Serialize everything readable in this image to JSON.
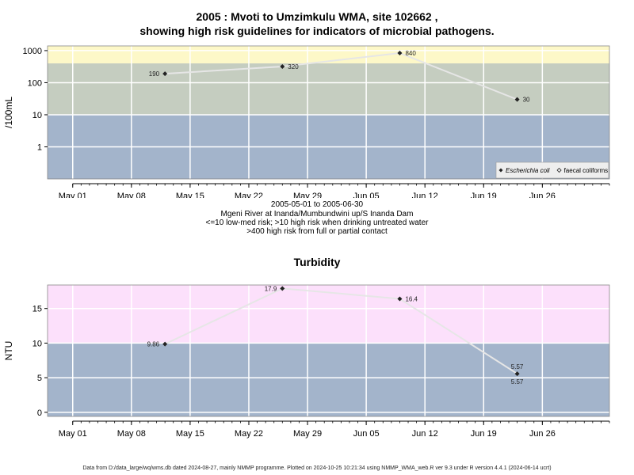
{
  "title_lines": [
    "2005 : Mvoti to Umzimkulu WMA, site 102662 ,",
    "showing high risk guidelines for indicators of microbial pathogens."
  ],
  "caption_lines": [
    "2005-05-01 to 2005-06-30",
    "Mgeni River at Inanda/Mumbundwini up/S Inanda Dam",
    "<=10 low-med risk; >10 high risk when drinking untreated water",
    ">400 high risk from full or partial contact"
  ],
  "footer": "Data from D:/data_large/wq/wms.db dated 2024-08-27, mainly NMMP programme. Plotted on 2024-10-25 10:21:34 using NMMP_WMA_web.R ver 9.3 under R version 4.4.1 (2024-06-14 ucrt)",
  "colors": {
    "low_band": "#a3b4cb",
    "mid_band": "#c5cdc0",
    "top_band_microbial": "#fdf8c8",
    "high_band_turbidity": "#fce0fb",
    "line": "#e6e6e6",
    "marker": "#222222",
    "grid": "#ffffff"
  },
  "chart_data": [
    {
      "type": "line",
      "title": "",
      "ylabel": "/100mL",
      "y_scale": "log",
      "ylim": [
        0.1,
        1400
      ],
      "x_ticks": [
        "May 01",
        "May 08",
        "May 15",
        "May 22",
        "May 29",
        "Jun 05",
        "Jun 12",
        "Jun 19",
        "Jun 26"
      ],
      "x_tick_dates": [
        "2005-05-01",
        "2005-05-08",
        "2005-05-15",
        "2005-05-22",
        "2005-05-29",
        "2005-06-05",
        "2005-06-12",
        "2005-06-19",
        "2005-06-26"
      ],
      "xlim": [
        "2005-04-28",
        "2005-07-04"
      ],
      "y_ticks": [
        1,
        10,
        100,
        1000
      ],
      "y_tick_labels": [
        "1",
        "10",
        "100",
        "1000"
      ],
      "bands": [
        {
          "from": 0.1,
          "to": 10,
          "color_key": "low_band"
        },
        {
          "from": 10,
          "to": 400,
          "color_key": "mid_band"
        },
        {
          "from": 400,
          "to": 1400,
          "color_key": "top_band_microbial"
        }
      ],
      "legend": {
        "position": "bottom-right",
        "entries": [
          {
            "label": "Escherichia coli",
            "marker": "filled-diamond",
            "italic": true
          },
          {
            "label": "faecal coliforms",
            "marker": "open-diamond",
            "italic": false
          }
        ]
      },
      "series": [
        {
          "name": "Escherichia coli",
          "points": [
            {
              "x": "2005-05-12",
              "y": 190,
              "label": "190",
              "label_side": "left"
            },
            {
              "x": "2005-05-26",
              "y": 320,
              "label": "320",
              "label_side": "right"
            },
            {
              "x": "2005-06-09",
              "y": 840,
              "label": "840",
              "label_side": "right"
            },
            {
              "x": "2005-06-23",
              "y": 30,
              "label": "30",
              "label_side": "right"
            }
          ]
        }
      ]
    },
    {
      "type": "line",
      "title": "Turbidity",
      "ylabel": "NTU",
      "y_scale": "linear",
      "ylim": [
        -0.6,
        18.4
      ],
      "x_ticks": [
        "May 01",
        "May 08",
        "May 15",
        "May 22",
        "May 29",
        "Jun 05",
        "Jun 12",
        "Jun 19",
        "Jun 26"
      ],
      "x_tick_dates": [
        "2005-05-01",
        "2005-05-08",
        "2005-05-15",
        "2005-05-22",
        "2005-05-29",
        "2005-06-05",
        "2005-06-12",
        "2005-06-19",
        "2005-06-26"
      ],
      "xlim": [
        "2005-04-28",
        "2005-07-04"
      ],
      "y_ticks": [
        0,
        5,
        10,
        15
      ],
      "y_tick_labels": [
        "0",
        "5",
        "10",
        "15"
      ],
      "bands": [
        {
          "from": -0.6,
          "to": 10,
          "color_key": "low_band"
        },
        {
          "from": 10,
          "to": 18.4,
          "color_key": "high_band_turbidity"
        }
      ],
      "series": [
        {
          "points": [
            {
              "x": "2005-05-12",
              "y": 9.86,
              "label": "9.86",
              "label_side": "left"
            },
            {
              "x": "2005-05-26",
              "y": 17.9,
              "label": "17.9",
              "label_side": "left"
            },
            {
              "x": "2005-06-09",
              "y": 16.4,
              "label": "16.4",
              "label_side": "right"
            },
            {
              "x": "2005-06-23",
              "y": 5.57,
              "label": "5.57",
              "label_side": "above"
            },
            {
              "x": "2005-06-23",
              "y": 5.57,
              "label": "5.57",
              "label_side": "below"
            }
          ]
        }
      ]
    }
  ]
}
